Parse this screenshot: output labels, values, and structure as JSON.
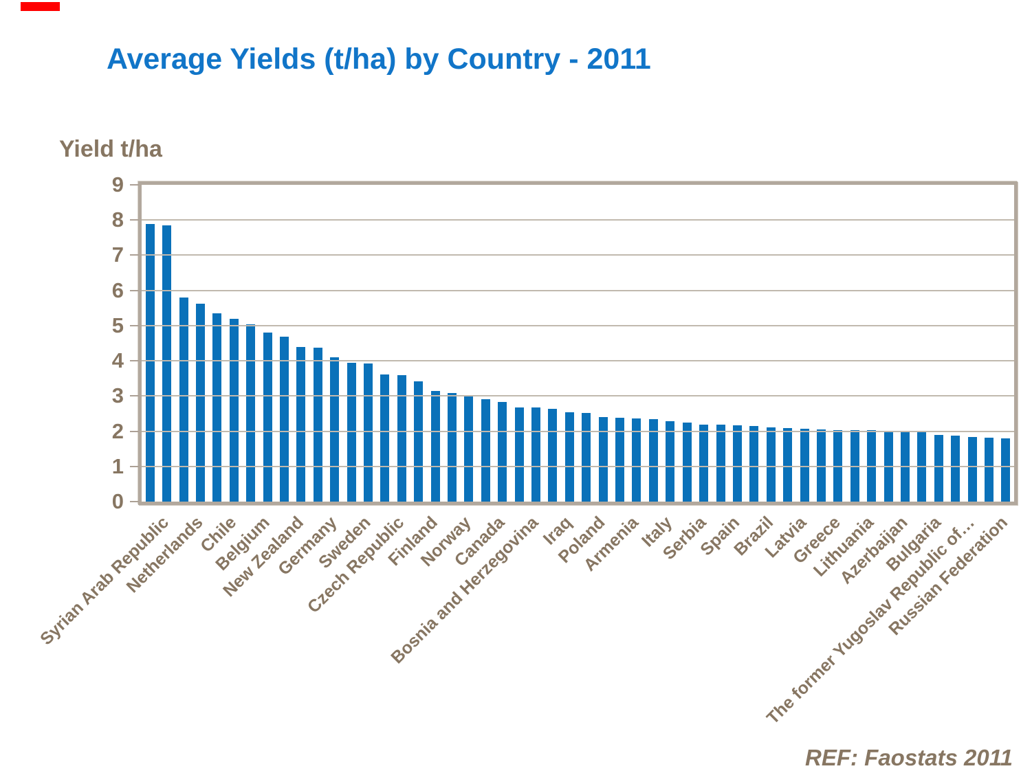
{
  "slide": {
    "title": "Average Yields (t/ha) by Country - 2011",
    "ref_note": "REF: Faostats 2011"
  },
  "colors": {
    "title_text": "#1175c8",
    "axis_text": "#877662",
    "bar_fill": "#0a71b9",
    "gridline": "#c1b9ae",
    "plot_border": "#b2a89d",
    "tick_mark": "#aca095",
    "red_mark": "#ff0000"
  },
  "chart_data": {
    "type": "bar",
    "title": "Average Yields (t/ha) by Country - 2011",
    "y_axis_title": "Yield t/ha",
    "ylim": [
      0,
      9
    ],
    "y_ticks": [
      0,
      1,
      2,
      3,
      4,
      5,
      6,
      7,
      8,
      9
    ],
    "grid": true,
    "legend": false,
    "x_label_rotation_deg": 45,
    "label_interval": 2,
    "bars": [
      {
        "label": "Syrian Arab Republic",
        "value": 7.88
      },
      {
        "label": "",
        "value": 7.84
      },
      {
        "label": "Netherlands",
        "value": 5.79
      },
      {
        "label": "",
        "value": 5.62
      },
      {
        "label": "Chile",
        "value": 5.35
      },
      {
        "label": "",
        "value": 5.19
      },
      {
        "label": "Belgium",
        "value": 5.04
      },
      {
        "label": "",
        "value": 4.8
      },
      {
        "label": "New Zealand",
        "value": 4.69
      },
      {
        "label": "",
        "value": 4.4
      },
      {
        "label": "Germany",
        "value": 4.38
      },
      {
        "label": "",
        "value": 4.1
      },
      {
        "label": "Sweden",
        "value": 3.94
      },
      {
        "label": "",
        "value": 3.92
      },
      {
        "label": "Czech Republic",
        "value": 3.62
      },
      {
        "label": "",
        "value": 3.59
      },
      {
        "label": "Finland",
        "value": 3.42
      },
      {
        "label": "",
        "value": 3.15
      },
      {
        "label": "Norway",
        "value": 3.08
      },
      {
        "label": "",
        "value": 3.03
      },
      {
        "label": "Canada",
        "value": 2.9
      },
      {
        "label": "",
        "value": 2.84
      },
      {
        "label": "Bosnia and Herzegovina",
        "value": 2.68
      },
      {
        "label": "",
        "value": 2.68
      },
      {
        "label": "Iraq",
        "value": 2.63
      },
      {
        "label": "",
        "value": 2.53
      },
      {
        "label": "Poland",
        "value": 2.52
      },
      {
        "label": "",
        "value": 2.4
      },
      {
        "label": "Armenia",
        "value": 2.39
      },
      {
        "label": "",
        "value": 2.37
      },
      {
        "label": "Italy",
        "value": 2.34
      },
      {
        "label": "",
        "value": 2.28
      },
      {
        "label": "Serbia",
        "value": 2.24
      },
      {
        "label": "",
        "value": 2.19
      },
      {
        "label": "Spain",
        "value": 2.18
      },
      {
        "label": "",
        "value": 2.16
      },
      {
        "label": "Brazil",
        "value": 2.15
      },
      {
        "label": "",
        "value": 2.1
      },
      {
        "label": "Latvia",
        "value": 2.08
      },
      {
        "label": "",
        "value": 2.06
      },
      {
        "label": "Greece",
        "value": 2.05
      },
      {
        "label": "",
        "value": 2.04
      },
      {
        "label": "Lithuania",
        "value": 2.03
      },
      {
        "label": "",
        "value": 2.03
      },
      {
        "label": "Azerbaijan",
        "value": 2.01
      },
      {
        "label": "",
        "value": 2.01
      },
      {
        "label": "Bulgaria",
        "value": 1.97
      },
      {
        "label": "",
        "value": 1.9
      },
      {
        "label": "The former Yugoslav Republic of…",
        "value": 1.87
      },
      {
        "label": "",
        "value": 1.83
      },
      {
        "label": "Russian Federation",
        "value": 1.81
      },
      {
        "label": "",
        "value": 1.79
      }
    ]
  }
}
